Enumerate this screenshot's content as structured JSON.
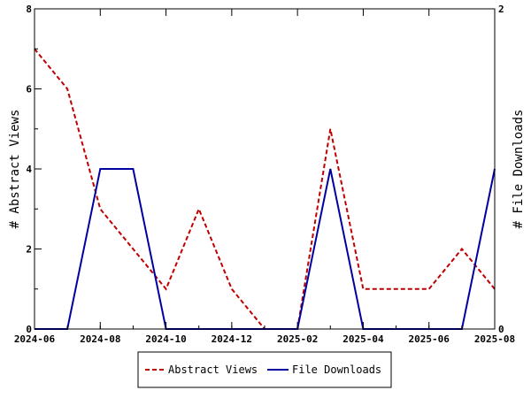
{
  "chart_data": {
    "type": "line",
    "x": [
      "2024-06",
      "2024-07",
      "2024-08",
      "2024-09",
      "2024-10",
      "2024-11",
      "2024-12",
      "2025-01",
      "2025-02",
      "2025-03",
      "2025-04",
      "2025-05",
      "2025-06",
      "2025-07",
      "2025-08"
    ],
    "x_ticks": [
      "2024-06",
      "2024-08",
      "2024-10",
      "2024-12",
      "2025-02",
      "2025-04",
      "2025-06",
      "2025-08"
    ],
    "x_ticks_minor": [
      "2024-06",
      "2024-07",
      "2024-08",
      "2024-09",
      "2024-10",
      "2024-11",
      "2024-12",
      "2025-01",
      "2025-02",
      "2025-03",
      "2025-04",
      "2025-05",
      "2025-06",
      "2025-07",
      "2025-08"
    ],
    "y_left": {
      "label": "# Abstract Views",
      "lim": [
        0,
        8
      ],
      "ticks": [
        0,
        2,
        4,
        6,
        8
      ]
    },
    "y_right": {
      "label": "# File Downloads",
      "lim": [
        0,
        2
      ],
      "ticks": [
        0,
        2
      ]
    },
    "series": [
      {
        "name": "Abstract Views",
        "axis": "left",
        "color": "#c00000",
        "style": "dashed",
        "values": [
          7,
          6,
          3,
          2,
          1,
          3,
          1,
          0,
          0,
          5,
          1,
          1,
          1,
          2,
          1
        ]
      },
      {
        "name": "File Downloads",
        "axis": "right",
        "color": "#0000a0",
        "style": "solid",
        "values": [
          0,
          0,
          1,
          1,
          0,
          0,
          0,
          0,
          0,
          1,
          0,
          0,
          0,
          0,
          1
        ]
      }
    ],
    "legend_position": "bottom-center",
    "grid": false
  }
}
